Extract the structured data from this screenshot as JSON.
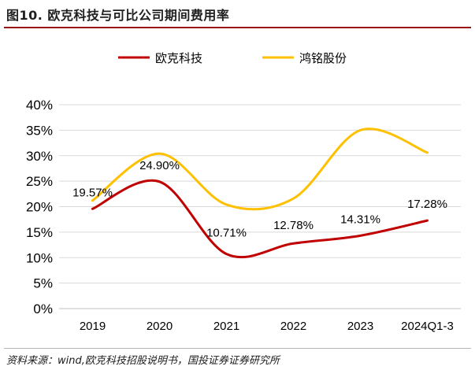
{
  "header": {
    "title": "图10. 欧克科技与可比公司期间费用率"
  },
  "footer": {
    "source": "资料来源：wind,欧克科技招股说明书，国投证券证券研究所"
  },
  "colors": {
    "accent": "#9a1212",
    "series_1": "#c00000",
    "series_2": "#ffc000",
    "grid": "#d9d9d9"
  },
  "chart_data": {
    "type": "line",
    "smooth": true,
    "categories": [
      "2019",
      "2020",
      "2021",
      "2022",
      "2023",
      "2024Q1-3"
    ],
    "series": [
      {
        "name": "欧克科技",
        "values": [
          19.57,
          24.9,
          10.71,
          12.78,
          14.31,
          17.28
        ],
        "labels": [
          "19.57%",
          "24.90%",
          "10.71%",
          "12.78%",
          "14.31%",
          "17.28%"
        ]
      },
      {
        "name": "鸿铭股份",
        "values": [
          21.2,
          30.4,
          20.4,
          21.6,
          35.0,
          30.6
        ]
      }
    ],
    "ylim": [
      0,
      40
    ],
    "yticks": [
      "0%",
      "5%",
      "10%",
      "15%",
      "20%",
      "25%",
      "30%",
      "35%",
      "40%"
    ],
    "grid": true,
    "legend_position": "top"
  }
}
